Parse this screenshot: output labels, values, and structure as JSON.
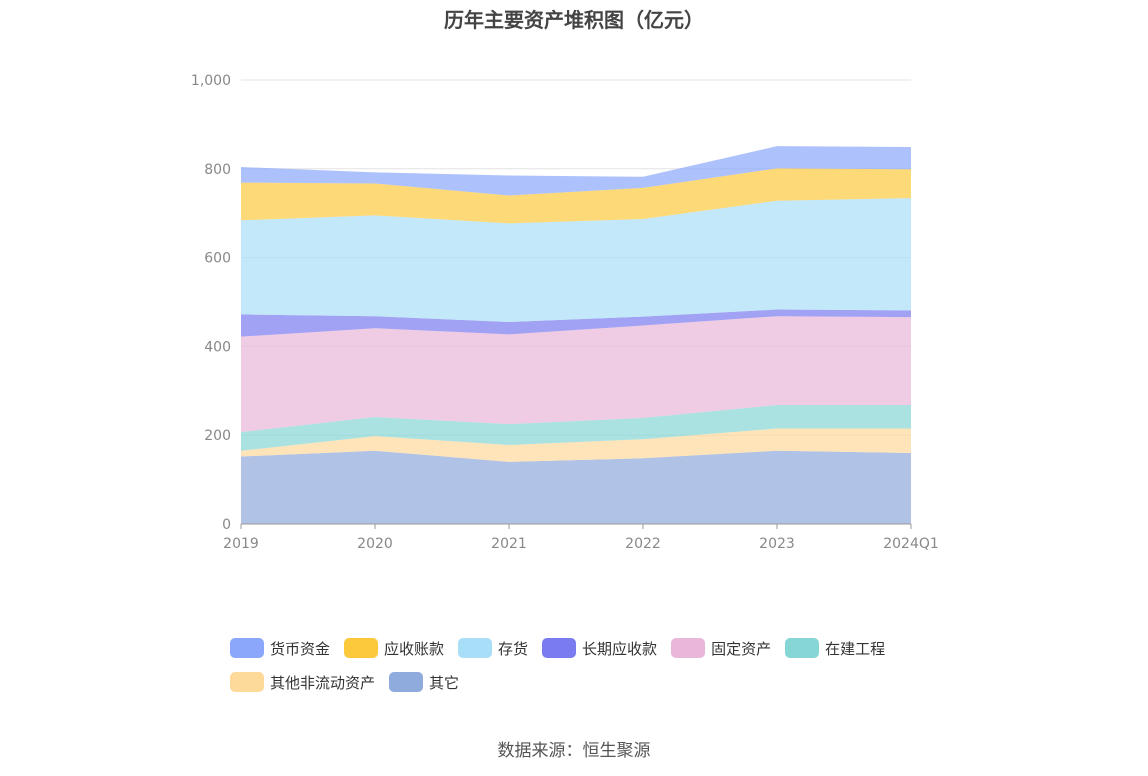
{
  "title": "历年主要资产堆积图（亿元）",
  "source": "数据来源：恒生聚源",
  "chart_data": {
    "type": "area",
    "stacked": true,
    "categories": [
      "2019",
      "2020",
      "2021",
      "2022",
      "2023",
      "2024Q1"
    ],
    "ylim": [
      0,
      1000
    ],
    "yticks": [
      "0",
      "200",
      "400",
      "600",
      "800",
      "1,000"
    ],
    "grid": true,
    "legend_position": "bottom",
    "series": [
      {
        "name": "其它",
        "color": "#8faadc",
        "values": [
          152,
          165,
          140,
          148,
          165,
          160
        ]
      },
      {
        "name": "其他非流动资产",
        "color": "#fdd99a",
        "values": [
          13,
          33,
          38,
          43,
          50,
          55
        ]
      },
      {
        "name": "在建工程",
        "color": "#86d6d6",
        "values": [
          42,
          43,
          47,
          48,
          53,
          53
        ]
      },
      {
        "name": "固定资产",
        "color": "#e8b7d9",
        "values": [
          215,
          200,
          202,
          208,
          200,
          198
        ]
      },
      {
        "name": "长期应收款",
        "color": "#7b7bf0",
        "values": [
          50,
          27,
          28,
          20,
          15,
          15
        ]
      },
      {
        "name": "存货",
        "color": "#a8def8",
        "values": [
          212,
          227,
          222,
          220,
          245,
          253
        ]
      },
      {
        "name": "应收账款",
        "color": "#fcc93d",
        "values": [
          85,
          72,
          63,
          70,
          73,
          65
        ]
      },
      {
        "name": "货币资金",
        "color": "#8aa7fb",
        "values": [
          35,
          25,
          45,
          25,
          50,
          50
        ]
      }
    ]
  },
  "legend_order": [
    "货币资金",
    "应收账款",
    "存货",
    "长期应收款",
    "固定资产",
    "在建工程",
    "其他非流动资产",
    "其它"
  ]
}
